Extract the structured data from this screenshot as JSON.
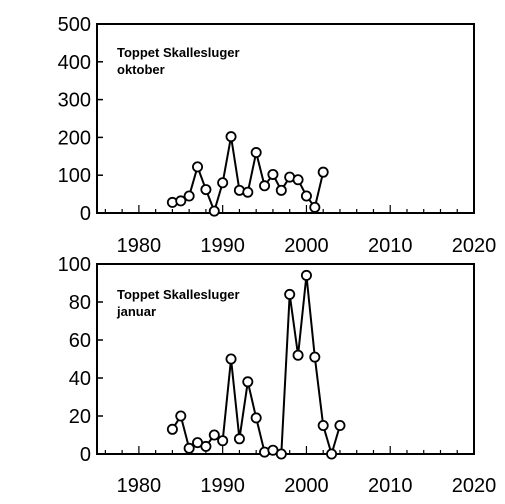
{
  "chart_data": [
    {
      "type": "line",
      "label_lines": [
        "Toppet Skallesluger",
        "oktober"
      ],
      "xlim": [
        1975,
        2020
      ],
      "ylim": [
        0,
        500
      ],
      "x_ticks": [
        1980,
        1990,
        2000,
        2010,
        2020
      ],
      "y_ticks": [
        0,
        100,
        200,
        300,
        400,
        500
      ],
      "grid": false,
      "marker": "open-circle",
      "series": [
        {
          "x": [
            1984,
            1985,
            1986,
            1987,
            1988,
            1989,
            1990,
            1991,
            1992,
            1993,
            1994,
            1995,
            1996,
            1997,
            1998,
            1999,
            2000,
            2001,
            2002
          ],
          "y": [
            28,
            32,
            45,
            122,
            62,
            5,
            80,
            202,
            60,
            55,
            160,
            72,
            102,
            60,
            95,
            88,
            45,
            15,
            108
          ]
        }
      ]
    },
    {
      "type": "line",
      "label_lines": [
        "Toppet Skallesluger",
        "januar"
      ],
      "xlim": [
        1975,
        2020
      ],
      "ylim": [
        0,
        100
      ],
      "x_ticks": [
        1980,
        1990,
        2000,
        2010,
        2020
      ],
      "y_ticks": [
        0,
        20,
        40,
        60,
        80,
        100
      ],
      "grid": false,
      "marker": "open-circle",
      "series": [
        {
          "x": [
            1984,
            1985,
            1986,
            1987,
            1988,
            1989,
            1990,
            1991,
            1992,
            1993,
            1994,
            1995,
            1996,
            1997,
            1998,
            1999,
            2000,
            2001,
            2002,
            2003,
            2004
          ],
          "y": [
            13,
            20,
            3,
            6,
            4,
            10,
            7,
            50,
            8,
            38,
            19,
            1,
            2,
            0,
            84,
            52,
            94,
            51,
            15,
            0,
            15
          ]
        }
      ]
    }
  ]
}
